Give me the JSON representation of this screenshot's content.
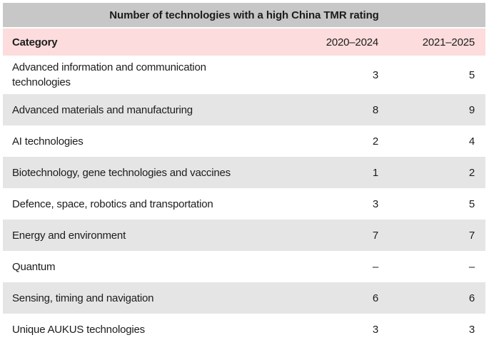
{
  "chart_data": {
    "type": "table",
    "title": "Number of technologies with a high China TMR rating",
    "columns": [
      "Category",
      "2020–2024",
      "2021–2025"
    ],
    "rows": [
      [
        "Advanced information and communication technologies",
        "3",
        "5"
      ],
      [
        "Advanced materials and manufacturing",
        "8",
        "9"
      ],
      [
        "AI technologies",
        "2",
        "4"
      ],
      [
        "Biotechnology, gene technologies and vaccines",
        "1",
        "2"
      ],
      [
        "Defence, space, robotics and transportation",
        "3",
        "5"
      ],
      [
        "Energy and environment",
        "7",
        "7"
      ],
      [
        "Quantum",
        "–",
        "–"
      ],
      [
        "Sensing, timing and navigation",
        "6",
        "6"
      ],
      [
        "Unique AUKUS technologies",
        "3",
        "3"
      ]
    ],
    "layout": {
      "legend": "none",
      "grid": false,
      "row_striping": "alternate",
      "value_alignment": "right"
    },
    "colors": {
      "title_bg": "#c7c7c7",
      "header_bg": "#fcdcdc",
      "alt_row_bg": "#e5e5e5",
      "text": "#1c1c1c"
    }
  }
}
